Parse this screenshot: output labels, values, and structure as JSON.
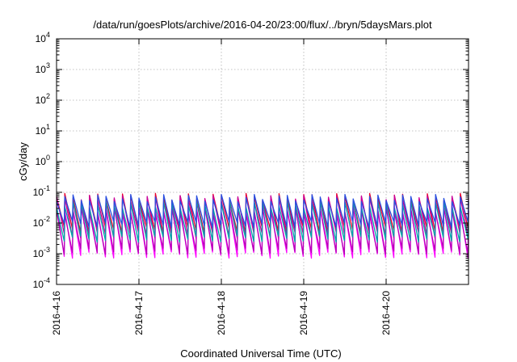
{
  "chart_data": {
    "type": "line",
    "title": "/data/run/goesPlots/archive/2016-04-20/23:00/flux/../bryn/5daysMars.plot",
    "xlabel": "Coordinated Universal Time (UTC)",
    "ylabel": "cGy/day",
    "yscale": "log",
    "ylim": [
      0.0001,
      10000
    ],
    "yticks": [
      {
        "base": "10",
        "exp": "-4",
        "value": 0.0001
      },
      {
        "base": "10",
        "exp": "-3",
        "value": 0.001
      },
      {
        "base": "10",
        "exp": "-2",
        "value": 0.01
      },
      {
        "base": "10",
        "exp": "-1",
        "value": 0.1
      },
      {
        "base": "10",
        "exp": "0",
        "value": 1
      },
      {
        "base": "10",
        "exp": "1",
        "value": 10
      },
      {
        "base": "10",
        "exp": "2",
        "value": 100
      },
      {
        "base": "10",
        "exp": "3",
        "value": 1000
      },
      {
        "base": "10",
        "exp": "4",
        "value": 10000
      }
    ],
    "xlim": [
      "2016-04-16 00:00",
      "2016-04-21 00:00"
    ],
    "xticks": [
      "2016-4-16",
      "2016-4-17",
      "2016-4-18",
      "2016-4-19",
      "2016-4-20"
    ],
    "grid": true,
    "legend": "none",
    "sawtooth": {
      "cycles_per_day": 10,
      "peaks_per_series_note": "approximate periodic dose pattern",
      "series": [
        {
          "color": "#e8002e",
          "peak": 0.07,
          "trough": 0.006
        },
        {
          "color": "#c8009b",
          "peak": 0.06,
          "trough": 0.004
        },
        {
          "color": "#ff00ff",
          "peak": 0.03,
          "trough": 0.0009
        },
        {
          "color": "#b800b8",
          "peak": 0.025,
          "trough": 0.0012
        },
        {
          "color": "#00a8a8",
          "peak": 0.04,
          "trough": 0.003
        },
        {
          "color": "#2a50e0",
          "peak": 0.065,
          "trough": 0.009
        }
      ]
    }
  }
}
